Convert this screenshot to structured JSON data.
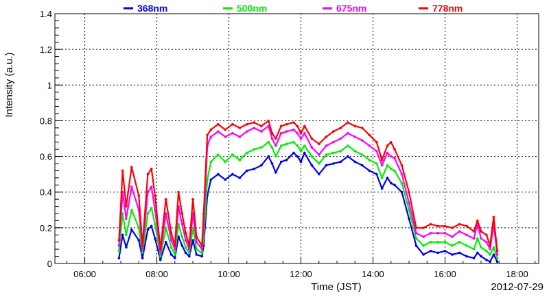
{
  "chart_data": {
    "type": "scatter",
    "title": "",
    "xlabel": "Time (JST)",
    "ylabel": "Intensity (a.u.)",
    "date_label": "2012-07-29",
    "x_unit": "hour of day (JST)",
    "xlim": [
      5.17,
      18.6
    ],
    "ylim": [
      0,
      1.4
    ],
    "x_tick_values": [
      6,
      8,
      10,
      12,
      14,
      16,
      18
    ],
    "x_tick_labels": [
      "06:00",
      "08:00",
      "10:00",
      "12:00",
      "14:00",
      "16:00",
      "18:00"
    ],
    "y_ticks": [
      0,
      0.2,
      0.4,
      0.6,
      0.8,
      1,
      1.2,
      1.4
    ],
    "y_tick_labels": [
      "0",
      "0.2",
      "0.4",
      "0.6",
      "0.8",
      "1",
      "1.2",
      "1.4"
    ],
    "grid": true,
    "legend_position": "top",
    "x": [
      6.95,
      7.05,
      7.15,
      7.3,
      7.5,
      7.6,
      7.75,
      7.85,
      7.95,
      8.1,
      8.25,
      8.4,
      8.5,
      8.6,
      8.7,
      8.8,
      8.9,
      9.0,
      9.1,
      9.25,
      9.3,
      9.4,
      9.5,
      9.7,
      9.9,
      10.1,
      10.3,
      10.5,
      10.7,
      10.9,
      11.1,
      11.2,
      11.3,
      11.45,
      11.6,
      11.8,
      11.9,
      12.0,
      12.1,
      12.3,
      12.5,
      12.7,
      12.9,
      13.1,
      13.3,
      13.5,
      13.7,
      13.9,
      14.1,
      14.25,
      14.4,
      14.5,
      14.6,
      14.8,
      15.0,
      15.2,
      15.4,
      15.6,
      15.8,
      16.0,
      16.2,
      16.4,
      16.6,
      16.8,
      16.9,
      17.0,
      17.15,
      17.25,
      17.35,
      17.45
    ],
    "series": [
      {
        "name": "368nm",
        "color": "#0000ee",
        "values": [
          0.03,
          0.16,
          0.09,
          0.19,
          0.13,
          0.03,
          0.19,
          0.21,
          0.14,
          0.02,
          0.12,
          0.05,
          0.03,
          0.15,
          0.1,
          0.06,
          0.04,
          0.13,
          0.05,
          0.04,
          0.1,
          0.38,
          0.47,
          0.5,
          0.47,
          0.5,
          0.48,
          0.52,
          0.53,
          0.55,
          0.6,
          0.56,
          0.51,
          0.57,
          0.58,
          0.62,
          0.6,
          0.57,
          0.62,
          0.55,
          0.5,
          0.55,
          0.56,
          0.57,
          0.6,
          0.57,
          0.55,
          0.52,
          0.5,
          0.42,
          0.48,
          0.45,
          0.44,
          0.4,
          0.25,
          0.1,
          0.05,
          0.07,
          0.06,
          0.07,
          0.05,
          0.06,
          0.04,
          0.03,
          0.06,
          0.04,
          0.02,
          0.01,
          0.05,
          0.01
        ]
      },
      {
        "name": "500nm",
        "color": "#00ee00",
        "values": [
          0.07,
          0.28,
          0.16,
          0.3,
          0.2,
          0.06,
          0.28,
          0.31,
          0.22,
          0.04,
          0.2,
          0.09,
          0.05,
          0.22,
          0.15,
          0.09,
          0.06,
          0.2,
          0.08,
          0.06,
          0.15,
          0.47,
          0.57,
          0.61,
          0.57,
          0.61,
          0.58,
          0.62,
          0.64,
          0.65,
          0.68,
          0.65,
          0.6,
          0.66,
          0.67,
          0.68,
          0.66,
          0.63,
          0.66,
          0.6,
          0.56,
          0.61,
          0.62,
          0.63,
          0.66,
          0.63,
          0.61,
          0.58,
          0.56,
          0.48,
          0.55,
          0.53,
          0.52,
          0.45,
          0.3,
          0.14,
          0.1,
          0.12,
          0.12,
          0.12,
          0.1,
          0.12,
          0.1,
          0.08,
          0.14,
          0.09,
          0.07,
          0.05,
          0.09,
          0.03
        ]
      },
      {
        "name": "675nm",
        "color": "#ff00ff",
        "values": [
          0.1,
          0.4,
          0.25,
          0.43,
          0.3,
          0.08,
          0.4,
          0.43,
          0.3,
          0.06,
          0.28,
          0.13,
          0.08,
          0.32,
          0.22,
          0.13,
          0.08,
          0.28,
          0.12,
          0.08,
          0.22,
          0.66,
          0.71,
          0.74,
          0.71,
          0.73,
          0.71,
          0.74,
          0.76,
          0.74,
          0.77,
          0.7,
          0.66,
          0.73,
          0.74,
          0.75,
          0.73,
          0.7,
          0.73,
          0.65,
          0.61,
          0.66,
          0.68,
          0.7,
          0.73,
          0.71,
          0.69,
          0.66,
          0.63,
          0.55,
          0.62,
          0.6,
          0.59,
          0.5,
          0.34,
          0.17,
          0.15,
          0.17,
          0.17,
          0.17,
          0.15,
          0.18,
          0.16,
          0.14,
          0.22,
          0.14,
          0.12,
          0.08,
          0.22,
          0.05
        ]
      },
      {
        "name": "778nm",
        "color": "#ff0000",
        "values": [
          0.13,
          0.52,
          0.32,
          0.54,
          0.38,
          0.1,
          0.5,
          0.53,
          0.38,
          0.08,
          0.36,
          0.17,
          0.1,
          0.4,
          0.28,
          0.17,
          0.1,
          0.36,
          0.15,
          0.1,
          0.28,
          0.72,
          0.75,
          0.78,
          0.75,
          0.78,
          0.76,
          0.78,
          0.79,
          0.77,
          0.8,
          0.73,
          0.7,
          0.77,
          0.78,
          0.79,
          0.77,
          0.73,
          0.77,
          0.7,
          0.67,
          0.71,
          0.74,
          0.76,
          0.79,
          0.77,
          0.76,
          0.72,
          0.68,
          0.58,
          0.66,
          0.68,
          0.64,
          0.55,
          0.4,
          0.2,
          0.2,
          0.22,
          0.21,
          0.21,
          0.2,
          0.22,
          0.21,
          0.18,
          0.24,
          0.18,
          0.16,
          0.1,
          0.26,
          0.07
        ]
      }
    ]
  }
}
